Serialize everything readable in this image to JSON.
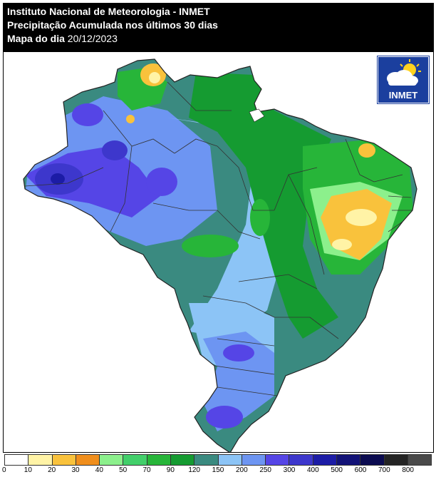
{
  "header": {
    "line1": "Instituto Nacional de Meteorologia - INMET",
    "line2": "Precipitação Acumulada nos últimos 30 dias",
    "line3_label": "Mapa do dia",
    "line3_date": "20/12/2023"
  },
  "logo": {
    "text": "INMET",
    "icon": "cloud-sun-icon"
  },
  "legend": {
    "unit_note": "",
    "ticks": [
      "0",
      "10",
      "20",
      "30",
      "40",
      "50",
      "70",
      "90",
      "120",
      "150",
      "200",
      "250",
      "300",
      "400",
      "500",
      "600",
      "700",
      "800"
    ],
    "colors": [
      "#ffffff",
      "#fff3a6",
      "#f9c23c",
      "#f08e1c",
      "#8cf08c",
      "#42cf6a",
      "#27b539",
      "#159b31",
      "#3a8a80",
      "#8cc4f6",
      "#6d95f2",
      "#5545e6",
      "#3d37cc",
      "#1c1ca6",
      "#121277",
      "#0b0b50",
      "#242424",
      "#4a4a4a"
    ]
  },
  "map": {
    "country": "Brasil",
    "colors": {
      "land_base": "#3a8a80",
      "light_blue": "#8cc4f6",
      "blue": "#6d95f2",
      "purple": "#5545e6",
      "dark_purple": "#3d37cc",
      "navy": "#1c1ca6",
      "green": "#159b31",
      "mid_green": "#27b539",
      "light_green": "#8cf08c",
      "yellow": "#fff3a6",
      "orange": "#f9c23c",
      "dark_orange": "#f08e1c",
      "border": "#333333"
    }
  }
}
